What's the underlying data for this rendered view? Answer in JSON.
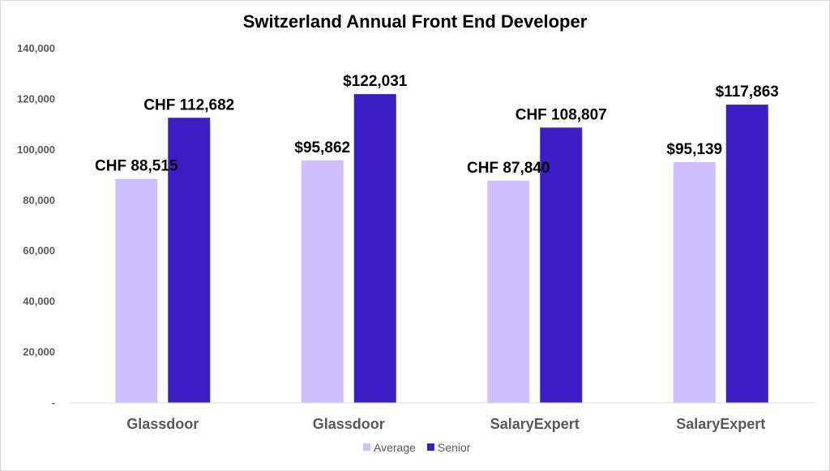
{
  "chart_data": {
    "type": "bar",
    "title": "Switzerland Annual Front End Developer",
    "categories": [
      "Glassdoor",
      "Glassdoor",
      "SalaryExpert",
      "SalaryExpert"
    ],
    "series": [
      {
        "name": "Average",
        "color": "#d0bfff",
        "values": [
          88515,
          95862,
          87840,
          95139
        ],
        "labels": [
          "CHF 88,515",
          "$95,862",
          "CHF 87,840",
          "$95,139"
        ]
      },
      {
        "name": "Senior",
        "color": "#3b1ec4",
        "values": [
          112682,
          122031,
          108807,
          117863
        ],
        "labels": [
          "CHF 112,682",
          "$122,031",
          "CHF 108,807",
          "$117,863"
        ]
      }
    ],
    "yticks": [
      "-",
      "20,000",
      "40,000",
      "60,000",
      "80,000",
      "100,000",
      "120,000",
      "140,000"
    ],
    "ylim": [
      0,
      140000
    ],
    "grid": false,
    "legend": "bottom"
  }
}
